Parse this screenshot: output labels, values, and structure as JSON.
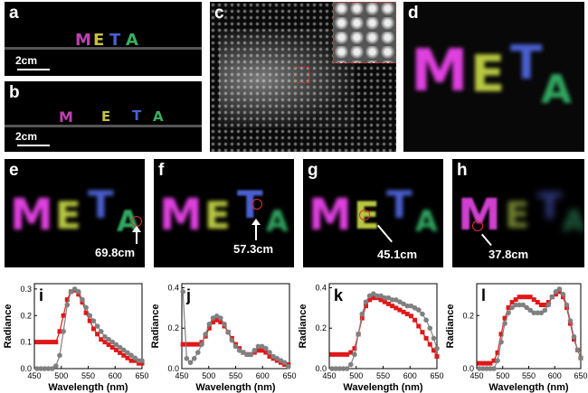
{
  "panels": {
    "a": {
      "label": "a",
      "letters": [
        "M",
        "E",
        "T",
        "A"
      ],
      "scale": "2cm"
    },
    "b": {
      "label": "b",
      "letters": [
        "M",
        "E",
        "T",
        "A"
      ],
      "scale": "2cm"
    },
    "c": {
      "label": "c"
    },
    "d": {
      "label": "d",
      "letters": [
        "M",
        "E",
        "T",
        "A"
      ]
    },
    "e": {
      "label": "e",
      "distance": "69.8cm"
    },
    "f": {
      "label": "f",
      "distance": "57.3cm"
    },
    "g": {
      "label": "g",
      "distance": "45.1cm"
    },
    "h": {
      "label": "h",
      "distance": "37.8cm"
    }
  },
  "colors": {
    "magenta": "#e040e0",
    "yellow": "#c8d040",
    "blue": "#4a5fd0",
    "green": "#38b060",
    "red_series": "#e01818",
    "gray_series": "#808080"
  },
  "chart_data": [
    {
      "type": "line",
      "panel": "i",
      "xlabel": "Wavelength (nm)",
      "ylabel": "Radiance",
      "xlim": [
        450,
        650
      ],
      "ylim": [
        0,
        0.32
      ],
      "xticks": [
        450,
        500,
        550,
        600,
        650
      ],
      "yticks": [
        0.0,
        0.1,
        0.2,
        0.3
      ],
      "x": [
        455,
        462,
        469,
        476,
        483,
        490,
        497,
        504,
        511,
        518,
        525,
        532,
        539,
        546,
        553,
        560,
        567,
        574,
        581,
        588,
        595,
        602,
        609,
        616,
        623,
        630,
        637,
        644,
        650
      ],
      "series": [
        {
          "name": "red",
          "values": [
            0.1,
            0.1,
            0.1,
            0.1,
            0.1,
            0.1,
            0.14,
            0.2,
            0.26,
            0.29,
            0.295,
            0.28,
            0.25,
            0.21,
            0.18,
            0.15,
            0.13,
            0.11,
            0.1,
            0.09,
            0.08,
            0.07,
            0.06,
            0.05,
            0.04,
            0.03,
            0.03,
            0.02,
            0.02
          ]
        },
        {
          "name": "gray",
          "values": [
            0.0,
            0.0,
            0.0,
            0.0,
            0.0,
            0.01,
            0.05,
            0.14,
            0.24,
            0.29,
            0.3,
            0.29,
            0.26,
            0.23,
            0.2,
            0.18,
            0.16,
            0.14,
            0.12,
            0.11,
            0.1,
            0.09,
            0.08,
            0.07,
            0.06,
            0.05,
            0.04,
            0.03,
            0.03
          ]
        }
      ]
    },
    {
      "type": "line",
      "panel": "j",
      "xlabel": "Wavelength (nm)",
      "ylabel": "Radiance",
      "xlim": [
        450,
        650
      ],
      "ylim": [
        0,
        0.42
      ],
      "xticks": [
        450,
        500,
        550,
        600,
        650
      ],
      "yticks": [
        0.0,
        0.2,
        0.4
      ],
      "x": [
        452,
        459,
        466,
        473,
        480,
        487,
        494,
        501,
        508,
        515,
        522,
        529,
        536,
        543,
        550,
        557,
        564,
        571,
        578,
        585,
        592,
        599,
        606,
        613,
        620,
        627,
        634,
        641,
        648
      ],
      "series": [
        {
          "name": "red",
          "values": [
            0.12,
            0.12,
            0.12,
            0.12,
            0.12,
            0.13,
            0.16,
            0.2,
            0.23,
            0.24,
            0.23,
            0.21,
            0.18,
            0.15,
            0.12,
            0.1,
            0.08,
            0.07,
            0.07,
            0.08,
            0.09,
            0.09,
            0.08,
            0.06,
            0.05,
            0.04,
            0.03,
            0.02,
            0.02
          ]
        },
        {
          "name": "gray",
          "values": [
            0.38,
            0.05,
            0.03,
            0.05,
            0.08,
            0.12,
            0.17,
            0.22,
            0.25,
            0.26,
            0.25,
            0.22,
            0.18,
            0.14,
            0.11,
            0.09,
            0.08,
            0.07,
            0.07,
            0.09,
            0.11,
            0.11,
            0.1,
            0.08,
            0.06,
            0.05,
            0.04,
            0.03,
            0.01
          ]
        }
      ]
    },
    {
      "type": "line",
      "panel": "k",
      "xlabel": "Wavelength (nm)",
      "ylabel": "Radiance",
      "xlim": [
        450,
        650
      ],
      "ylim": [
        0,
        0.42
      ],
      "xticks": [
        450,
        500,
        550,
        600,
        650
      ],
      "yticks": [
        0.0,
        0.2,
        0.4
      ],
      "x": [
        455,
        462,
        469,
        476,
        483,
        490,
        497,
        504,
        511,
        518,
        525,
        532,
        539,
        546,
        553,
        560,
        567,
        574,
        581,
        588,
        595,
        602,
        609,
        616,
        623,
        630,
        637,
        644,
        650
      ],
      "series": [
        {
          "name": "red",
          "values": [
            0.07,
            0.07,
            0.07,
            0.07,
            0.07,
            0.08,
            0.1,
            0.17,
            0.25,
            0.31,
            0.34,
            0.35,
            0.35,
            0.34,
            0.33,
            0.32,
            0.31,
            0.3,
            0.29,
            0.28,
            0.27,
            0.26,
            0.24,
            0.21,
            0.18,
            0.15,
            0.12,
            0.09,
            0.06
          ]
        },
        {
          "name": "gray",
          "values": [
            0.0,
            0.0,
            0.0,
            0.0,
            0.0,
            0.02,
            0.07,
            0.17,
            0.27,
            0.33,
            0.36,
            0.37,
            0.36,
            0.36,
            0.35,
            0.35,
            0.34,
            0.34,
            0.33,
            0.32,
            0.31,
            0.31,
            0.3,
            0.29,
            0.27,
            0.24,
            0.2,
            0.15,
            0.1
          ]
        }
      ]
    },
    {
      "type": "line",
      "panel": "l",
      "xlabel": "Wavelength (nm)",
      "ylabel": "Radiance",
      "xlim": [
        450,
        650
      ],
      "ylim": [
        0,
        0.32
      ],
      "xticks": [
        450,
        500,
        550,
        600,
        650
      ],
      "yticks": [
        0.0,
        0.2
      ],
      "x": [
        455,
        462,
        469,
        476,
        483,
        490,
        497,
        504,
        511,
        518,
        525,
        532,
        539,
        546,
        553,
        560,
        567,
        574,
        581,
        588,
        595,
        602,
        609,
        616,
        623,
        630,
        637,
        644,
        650
      ],
      "series": [
        {
          "name": "red",
          "values": [
            0.02,
            0.02,
            0.02,
            0.02,
            0.03,
            0.06,
            0.13,
            0.19,
            0.23,
            0.25,
            0.26,
            0.27,
            0.27,
            0.27,
            0.27,
            0.26,
            0.25,
            0.24,
            0.24,
            0.25,
            0.27,
            0.28,
            0.29,
            0.27,
            0.23,
            0.17,
            0.11,
            0.07,
            0.04
          ]
        },
        {
          "name": "gray",
          "values": [
            0.0,
            0.0,
            0.0,
            0.0,
            0.0,
            0.03,
            0.1,
            0.17,
            0.21,
            0.23,
            0.24,
            0.24,
            0.24,
            0.23,
            0.22,
            0.21,
            0.21,
            0.21,
            0.22,
            0.24,
            0.27,
            0.29,
            0.3,
            0.28,
            0.24,
            0.18,
            0.12,
            0.07,
            0.04
          ]
        }
      ]
    }
  ]
}
